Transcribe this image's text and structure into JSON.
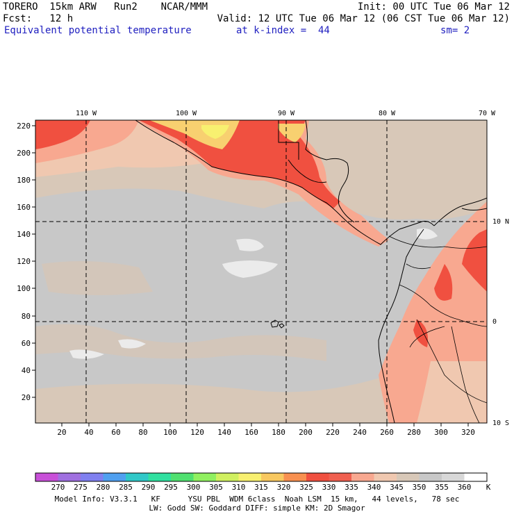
{
  "header": {
    "model": "TORERO  15km ARW   Run2    NCAR/MMM",
    "init": "Init: 00 UTC Tue 06 Mar 12",
    "fcst": "Fcst:   12 h",
    "valid": "Valid: 12 UTC Tue 06 Mar 12 (06 CST Tue 06 Mar 12)",
    "field": "Equivalent potential temperature",
    "level": "at k-index =  44",
    "smooth": "sm= 2"
  },
  "axes": {
    "lon_labels": [
      "110 W",
      "100 W",
      "90 W",
      "80 W",
      "70 W"
    ],
    "lat_labels": [
      "10 N",
      "0",
      "10 S"
    ],
    "y_ticks": [
      "220",
      "200",
      "180",
      "160",
      "140",
      "120",
      "100",
      "80",
      "60",
      "40",
      "20"
    ],
    "x_ticks": [
      "20",
      "40",
      "60",
      "80",
      "100",
      "120",
      "140",
      "160",
      "180",
      "200",
      "220",
      "240",
      "260",
      "280",
      "300",
      "320"
    ]
  },
  "colorbar": {
    "labels": [
      "270",
      "275",
      "280",
      "285",
      "290",
      "295",
      "300",
      "305",
      "310",
      "315",
      "320",
      "325",
      "330",
      "335",
      "340",
      "345",
      "350",
      "355",
      "360"
    ],
    "unit": "K",
    "colors": [
      "#c850d8",
      "#a070e0",
      "#8080f0",
      "#50a0f0",
      "#30c8c8",
      "#30e0a0",
      "#50e070",
      "#90f060",
      "#d0f060",
      "#f8f070",
      "#f8c860",
      "#f89050",
      "#f05040",
      "#f06050",
      "#f8a890",
      "#f0c8b0",
      "#d8c8b8",
      "#c8c8c8",
      "#d8d8d8",
      "#ffffff"
    ]
  },
  "footer": {
    "line1": "Model Info: V3.3.1   KF      YSU PBL  WDM 6class  Noah LSM  15 km,   44 levels,   78 sec",
    "line2": "LW: Godd SW: Goddard DIFF: simple KM: 2D Smagor"
  }
}
